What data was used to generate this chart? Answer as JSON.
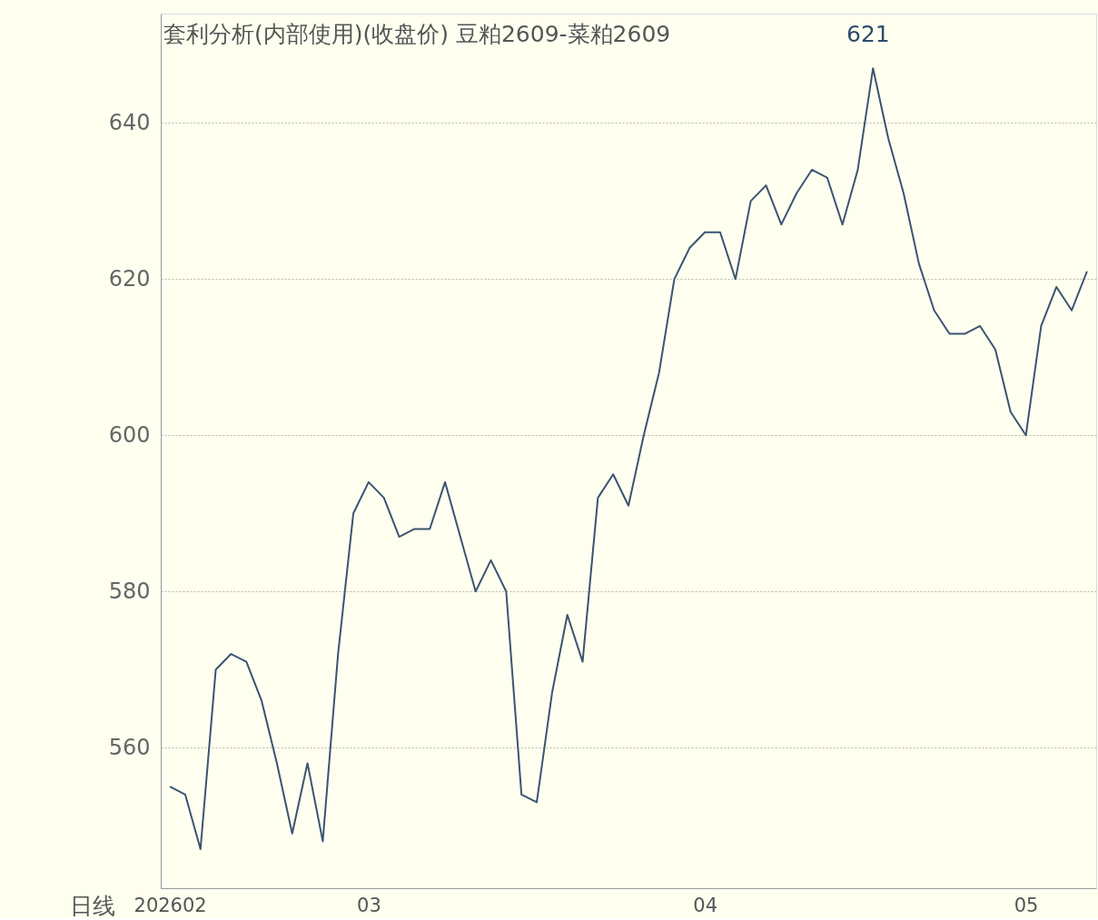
{
  "chart_data": {
    "type": "line",
    "title": "套利分析(内部使用)(收盘价) 豆粕2609-菜粕2609",
    "annotations": [
      "621"
    ],
    "xlabel": "日线",
    "categories": [
      "202602",
      null,
      null,
      null,
      null,
      null,
      null,
      null,
      null,
      null,
      null,
      null,
      null,
      "03",
      null,
      null,
      null,
      null,
      null,
      null,
      null,
      null,
      null,
      null,
      null,
      null,
      null,
      null,
      null,
      null,
      null,
      null,
      null,
      null,
      null,
      "04",
      null,
      null,
      null,
      null,
      null,
      null,
      null,
      null,
      null,
      null,
      null,
      null,
      null,
      null,
      null,
      null,
      null,
      null,
      null,
      null,
      "05",
      null,
      null,
      null,
      null
    ],
    "series": [
      {
        "color": "#3b5470",
        "values": [
          555,
          554,
          547,
          570,
          572,
          571,
          566,
          558,
          549,
          558,
          548,
          572,
          590,
          594,
          592,
          587,
          588,
          588,
          594,
          587,
          580,
          584,
          580,
          554,
          553,
          567,
          577,
          571,
          592,
          595,
          591,
          600,
          608,
          620,
          624,
          626,
          626,
          620,
          630,
          632,
          627,
          631,
          634,
          633,
          627,
          634,
          647,
          638,
          631,
          622,
          616,
          613,
          613,
          614,
          611,
          603,
          600,
          614,
          619,
          616,
          621
        ]
      }
    ],
    "ylim": [
      542,
      654
    ],
    "yticks": [
      560,
      580,
      600,
      620,
      640
    ],
    "grid": "y"
  }
}
